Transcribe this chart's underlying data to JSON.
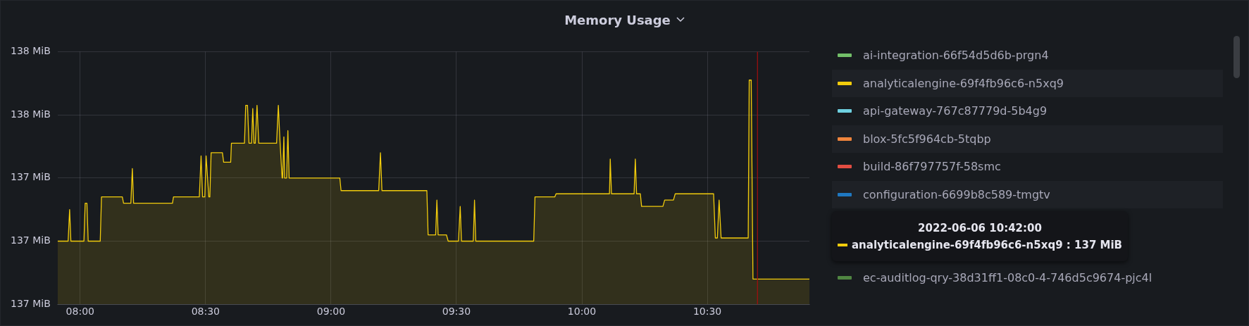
{
  "chart_data": {
    "type": "area",
    "title": "Memory Usage",
    "x": [
      7.91,
      7.952,
      7.958,
      7.963,
      8.015,
      8.02,
      8.027,
      8.032,
      8.08,
      8.085,
      8.168,
      8.173,
      8.202,
      8.208,
      8.213,
      8.368,
      8.372,
      8.475,
      8.482,
      8.488,
      8.497,
      8.502,
      8.513,
      8.517,
      8.522,
      8.567,
      8.572,
      8.6,
      8.603,
      8.655,
      8.66,
      8.667,
      8.673,
      8.683,
      8.688,
      8.693,
      8.698,
      8.705,
      8.712,
      8.783,
      8.79,
      8.797,
      8.805,
      8.807,
      8.812,
      8.815,
      8.823,
      8.828,
      8.833,
      9.035,
      9.04,
      9.19,
      9.197,
      9.203,
      9.382,
      9.387,
      9.417,
      9.422,
      9.427,
      9.46,
      9.467,
      9.508,
      9.515,
      9.52,
      9.567,
      9.572,
      9.577,
      9.808,
      9.813,
      9.892,
      9.897,
      10.11,
      10.113,
      10.118,
      10.208,
      10.213,
      10.218,
      10.233,
      10.238,
      10.323,
      10.33,
      10.365,
      10.372,
      10.525,
      10.532,
      10.54,
      10.547,
      10.555,
      10.663,
      10.667,
      10.675,
      10.682,
      10.907
    ],
    "series": [
      {
        "name": "ai-integration-66f54d5d6b-prgn4",
        "color": "#73bf69",
        "values": [
          null,
          null,
          null,
          null,
          null,
          null,
          null,
          null,
          null,
          null,
          null,
          null,
          null,
          null,
          null,
          null,
          null,
          null,
          null,
          null,
          null,
          null,
          null,
          null,
          null,
          null,
          null,
          null,
          null,
          null,
          null,
          null,
          null,
          null,
          null,
          null,
          null,
          null,
          null,
          null,
          null,
          null,
          null,
          null,
          null,
          null,
          null,
          null,
          null,
          null,
          null,
          null,
          null,
          null,
          null,
          null,
          null,
          null,
          null,
          null,
          null,
          null,
          null,
          null,
          null,
          null,
          null,
          null,
          null,
          null,
          null,
          null,
          null,
          null,
          null,
          null,
          null,
          null,
          null,
          null,
          null,
          null,
          null,
          null,
          null,
          null,
          null,
          null,
          null,
          null,
          null,
          null,
          null
        ]
      },
      {
        "name": "analyticalengine-69f4fb96c6-n5xq9",
        "color": "#f2cc0c",
        "values": [
          137.1,
          137.1,
          137.2,
          137.1,
          137.1,
          137.22,
          137.22,
          137.1,
          137.1,
          137.24,
          137.24,
          137.22,
          137.22,
          137.33,
          137.22,
          137.22,
          137.24,
          137.24,
          137.37,
          137.24,
          137.24,
          137.37,
          137.24,
          137.24,
          137.38,
          137.38,
          137.35,
          137.35,
          137.41,
          137.41,
          137.53,
          137.53,
          137.41,
          137.41,
          137.52,
          137.41,
          137.41,
          137.53,
          137.41,
          137.41,
          137.53,
          137.41,
          137.3,
          137.3,
          137.43,
          137.3,
          137.3,
          137.45,
          137.3,
          137.3,
          137.26,
          137.26,
          137.38,
          137.26,
          137.26,
          137.12,
          137.12,
          137.23,
          137.12,
          137.12,
          137.1,
          137.1,
          137.21,
          137.1,
          137.1,
          137.23,
          137.1,
          137.1,
          137.24,
          137.24,
          137.25,
          137.25,
          137.36,
          137.25,
          137.25,
          137.36,
          137.25,
          137.25,
          137.21,
          137.21,
          137.23,
          137.23,
          137.25,
          137.25,
          137.11,
          137.11,
          137.23,
          137.11,
          137.11,
          137.61,
          137.61,
          136.98,
          136.98
        ]
      },
      {
        "name": "api-gateway-767c87779d-5b4g9",
        "color": "#6ed0e0",
        "values": [
          null,
          null,
          null,
          null,
          null,
          null,
          null,
          null,
          null,
          null,
          null,
          null,
          null,
          null,
          null,
          null,
          null,
          null,
          null,
          null,
          null,
          null,
          null,
          null,
          null,
          null,
          null,
          null,
          null,
          null,
          null,
          null,
          null,
          null,
          null,
          null,
          null,
          null,
          null,
          null,
          null,
          null,
          null,
          null,
          null,
          null,
          null,
          null,
          null,
          null,
          null,
          null,
          null,
          null,
          null,
          null,
          null,
          null,
          null,
          null,
          null,
          null,
          null,
          null,
          null,
          null,
          null,
          null,
          null,
          null,
          null,
          null,
          null,
          null,
          null,
          null,
          null,
          null,
          null,
          null,
          null,
          null,
          null,
          null,
          null,
          null,
          null,
          null,
          null,
          null,
          null,
          null,
          null
        ]
      },
      {
        "name": "blox-5fc5f964cb-5tqbp",
        "color": "#ef843c",
        "values": [
          null,
          null,
          null,
          null,
          null,
          null,
          null,
          null,
          null,
          null,
          null,
          null,
          null,
          null,
          null,
          null,
          null,
          null,
          null,
          null,
          null,
          null,
          null,
          null,
          null,
          null,
          null,
          null,
          null,
          null,
          null,
          null,
          null,
          null,
          null,
          null,
          null,
          null,
          null,
          null,
          null,
          null,
          null,
          null,
          null,
          null,
          null,
          null,
          null,
          null,
          null,
          null,
          null,
          null,
          null,
          null,
          null,
          null,
          null,
          null,
          null,
          null,
          null,
          null,
          null,
          null,
          null,
          null,
          null,
          null,
          null,
          null,
          null,
          null,
          null,
          null,
          null,
          null,
          null,
          null,
          null,
          null,
          null,
          null,
          null,
          null,
          null,
          null,
          null,
          null,
          null,
          null,
          null
        ]
      },
      {
        "name": "build-86f797757f-58smc",
        "color": "#e24d42",
        "values": [
          null,
          null,
          null,
          null,
          null,
          null,
          null,
          null,
          null,
          null,
          null,
          null,
          null,
          null,
          null,
          null,
          null,
          null,
          null,
          null,
          null,
          null,
          null,
          null,
          null,
          null,
          null,
          null,
          null,
          null,
          null,
          null,
          null,
          null,
          null,
          null,
          null,
          null,
          null,
          null,
          null,
          null,
          null,
          null,
          null,
          null,
          null,
          null,
          null,
          null,
          null,
          null,
          null,
          null,
          null,
          null,
          null,
          null,
          null,
          null,
          null,
          null,
          null,
          null,
          null,
          null,
          null,
          null,
          null,
          null,
          null,
          null,
          null,
          null,
          null,
          null,
          null,
          null,
          null,
          null,
          null,
          null,
          null,
          null,
          null,
          null,
          null,
          null,
          null,
          null,
          null,
          null,
          null
        ]
      },
      {
        "name": "configuration-6699b8c589-tmgtv",
        "color": "#1f78c1",
        "values": [
          null,
          null,
          null,
          null,
          null,
          null,
          null,
          null,
          null,
          null,
          null,
          null,
          null,
          null,
          null,
          null,
          null,
          null,
          null,
          null,
          null,
          null,
          null,
          null,
          null,
          null,
          null,
          null,
          null,
          null,
          null,
          null,
          null,
          null,
          null,
          null,
          null,
          null,
          null,
          null,
          null,
          null,
          null,
          null,
          null,
          null,
          null,
          null,
          null,
          null,
          null,
          null,
          null,
          null,
          null,
          null,
          null,
          null,
          null,
          null,
          null,
          null,
          null,
          null,
          null,
          null,
          null,
          null,
          null,
          null,
          null,
          null,
          null,
          null,
          null,
          null,
          null,
          null,
          null,
          null,
          null,
          null,
          null,
          null,
          null,
          null,
          null,
          null,
          null,
          null,
          null,
          null,
          null
        ]
      },
      {
        "name": "ec-auditlog-qry-38d31ff1-08c0-4-746d5c9674-pjc4l",
        "color": "#508642",
        "values": [
          null,
          null,
          null,
          null,
          null,
          null,
          null,
          null,
          null,
          null,
          null,
          null,
          null,
          null,
          null,
          null,
          null,
          null,
          null,
          null,
          null,
          null,
          null,
          null,
          null,
          null,
          null,
          null,
          null,
          null,
          null,
          null,
          null,
          null,
          null,
          null,
          null,
          null,
          null,
          null,
          null,
          null,
          null,
          null,
          null,
          null,
          null,
          null,
          null,
          null,
          null,
          null,
          null,
          null,
          null,
          null,
          null,
          null,
          null,
          null,
          null,
          null,
          null,
          null,
          null,
          null,
          null,
          null,
          null,
          null,
          null,
          null,
          null,
          null,
          null,
          null,
          null,
          null,
          null,
          null,
          null,
          null,
          null,
          null,
          null,
          null,
          null,
          null,
          null,
          null,
          null,
          null,
          null
        ]
      }
    ],
    "xlim": [
      7.91,
      10.907
    ],
    "xticks": [
      {
        "value": 8,
        "label": "08:00"
      },
      {
        "value": 8.5,
        "label": "08:30"
      },
      {
        "value": 9,
        "label": "09:00"
      },
      {
        "value": 9.5,
        "label": "09:30"
      },
      {
        "value": 10,
        "label": "10:00"
      },
      {
        "value": 10.5,
        "label": "10:30"
      }
    ],
    "ylim": [
      136.9,
      137.7
    ],
    "yticks": [
      {
        "value": 136.9,
        "label": "137 MiB"
      },
      {
        "value": 137.1,
        "label": "137 MiB"
      },
      {
        "value": 137.3,
        "label": "137 MiB"
      },
      {
        "value": 137.5,
        "label": "138 MiB"
      },
      {
        "value": 137.7,
        "label": "138 MiB"
      }
    ],
    "grid": true,
    "legend": "right",
    "ref_lines": [
      {
        "axis": "x",
        "value": 10.7,
        "color": "#a50e0e"
      }
    ],
    "annotations": [
      "2022-06-06 10:42:00",
      "analyticalengine-69f4fb96c6-n5xq9 : 137 MiB"
    ]
  }
}
